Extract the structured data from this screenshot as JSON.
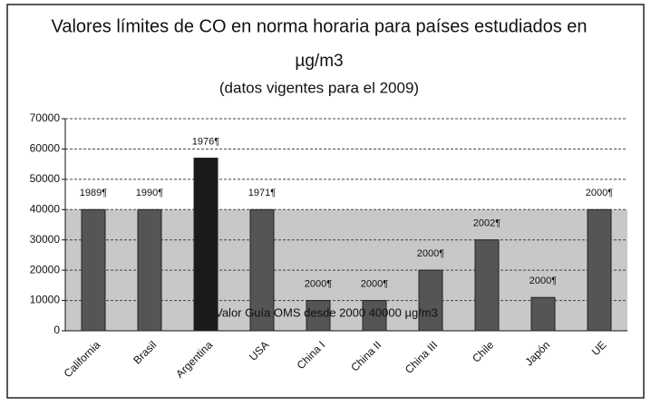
{
  "chart_data": {
    "type": "bar",
    "title": "Valores límites de CO en norma  horaria para países estudiados en",
    "title_line2": "µg/m3",
    "subtitle": "(datos vigentes para el 2009)",
    "categories": [
      "California",
      "Brasil",
      "Argentina",
      "USA",
      "China I",
      "China II",
      "China III",
      "Chile",
      "Japón",
      "UE"
    ],
    "values": [
      40000,
      40000,
      57000,
      40000,
      10000,
      10000,
      20000,
      30000,
      11000,
      40000
    ],
    "bar_labels": [
      "1989¶",
      "1990¶",
      "1976¶",
      "1971¶",
      "2000¶",
      "2000¶",
      "2000¶",
      "2002¶",
      "2000¶",
      "2000¶"
    ],
    "colors": [
      "#555",
      "#555",
      "#1a1a1a",
      "#555",
      "#555",
      "#555",
      "#555",
      "#555",
      "#555",
      "#555"
    ],
    "reference_band": {
      "value": 40000,
      "label": "Valor Guía OMS desde 2000 40000 µg/m3",
      "color": "#c8c8c8"
    },
    "ylim": [
      0,
      70000
    ],
    "yticks": [
      0,
      10000,
      20000,
      30000,
      40000,
      50000,
      60000,
      70000
    ],
    "grid": true
  }
}
